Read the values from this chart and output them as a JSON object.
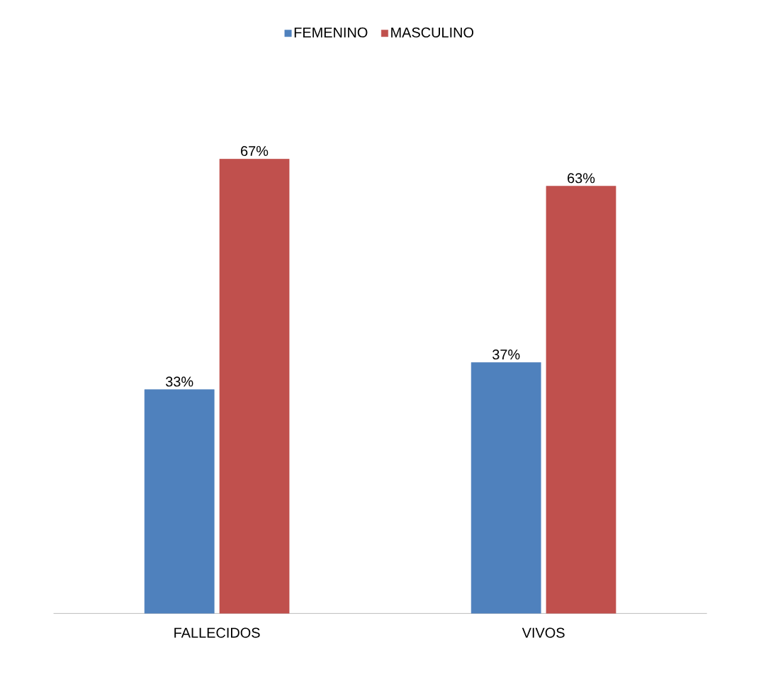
{
  "chart_data": {
    "type": "bar",
    "categories": [
      "FALLECIDOS",
      "VIVOS"
    ],
    "series": [
      {
        "name": "FEMENINO",
        "color": "#4f81bd",
        "values": [
          33,
          37
        ],
        "value_labels": [
          "33%",
          "37%"
        ]
      },
      {
        "name": "MASCULINO",
        "color": "#c0504d",
        "values": [
          67,
          63
        ],
        "value_labels": [
          "67%",
          "63%"
        ]
      }
    ],
    "legend": "top"
  }
}
